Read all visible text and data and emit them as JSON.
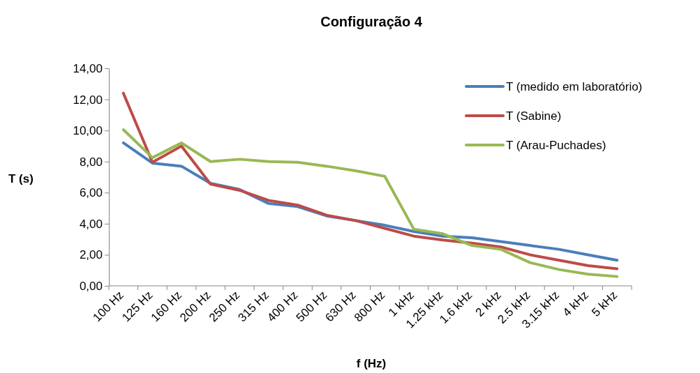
{
  "chart_data": {
    "type": "line",
    "title": "Configuração 4",
    "xlabel": "f (Hz)",
    "ylabel": "T (s)",
    "categories": [
      "100 Hz",
      "125 Hz",
      "160 Hz",
      "200 Hz",
      "250 Hz",
      "315 Hz",
      "400 Hz",
      "500 Hz",
      "630 Hz",
      "800 Hz",
      "1 kHz",
      "1.25 kHz",
      "1.6 kHz",
      "2 kHz",
      "2.5 kHz",
      "3.15 kHz",
      "4 kHz",
      "5 kHz"
    ],
    "series": [
      {
        "name": "T (medido em laboratório)",
        "color": "#4a7ebb",
        "values": [
          9.2,
          7.9,
          7.7,
          6.6,
          6.2,
          5.3,
          5.1,
          4.5,
          4.2,
          3.9,
          3.5,
          3.2,
          3.1,
          2.85,
          2.6,
          2.35,
          2.0,
          1.65
        ]
      },
      {
        "name": "T (Sabine)",
        "color": "#be4b48",
        "values": [
          12.4,
          7.95,
          9.0,
          6.55,
          6.15,
          5.5,
          5.2,
          4.55,
          4.2,
          3.7,
          3.2,
          2.95,
          2.75,
          2.5,
          2.0,
          1.65,
          1.3,
          1.1
        ]
      },
      {
        "name": "T (Arau-Puchades)",
        "color": "#98b954",
        "values": [
          10.05,
          8.25,
          9.2,
          8.0,
          8.15,
          8.0,
          7.95,
          7.7,
          7.4,
          7.05,
          3.65,
          3.35,
          2.6,
          2.35,
          1.5,
          1.05,
          0.75,
          0.6
        ]
      }
    ],
    "ylim": [
      0,
      14
    ],
    "yticks": [
      {
        "value": 0,
        "label": "0,00"
      },
      {
        "value": 2,
        "label": "2,00"
      },
      {
        "value": 4,
        "label": "4,00"
      },
      {
        "value": 6,
        "label": "6,00"
      },
      {
        "value": 8,
        "label": "8,00"
      },
      {
        "value": 10,
        "label": "10,00"
      },
      {
        "value": 12,
        "label": "12,00"
      },
      {
        "value": 14,
        "label": "14,00"
      }
    ],
    "grid": false,
    "legend": "top right",
    "marker": "none",
    "line_style": "solid"
  }
}
